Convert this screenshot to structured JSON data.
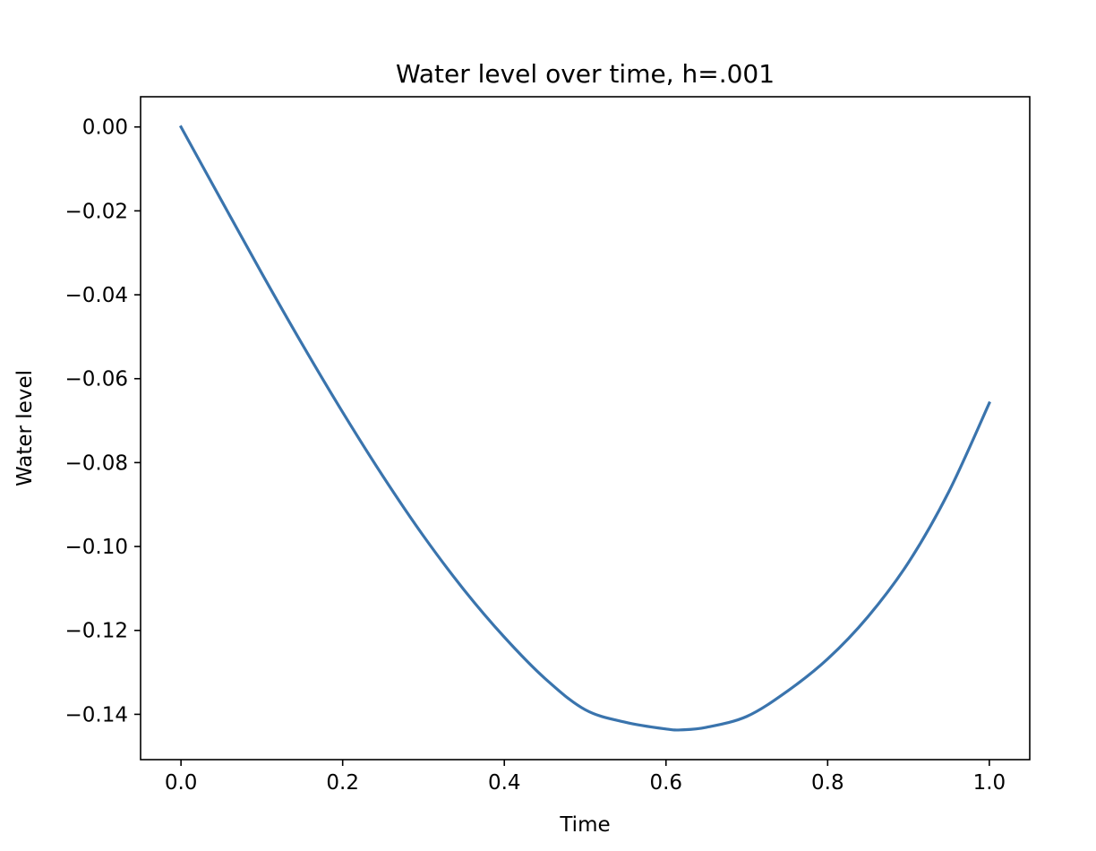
{
  "chart_data": {
    "type": "line",
    "title": "Water level over time, h=.001",
    "xlabel": "Time",
    "ylabel": "Water level",
    "xlim": [
      -0.05,
      1.05
    ],
    "ylim": [
      -0.1508,
      0.0072
    ],
    "grid": false,
    "xticks": [
      0.0,
      0.2,
      0.4,
      0.6,
      0.8,
      1.0
    ],
    "xtick_labels": [
      "0.0",
      "0.2",
      "0.4",
      "0.6",
      "0.8",
      "1.0"
    ],
    "yticks": [
      0.0,
      -0.02,
      -0.04,
      -0.06,
      -0.08,
      -0.1,
      -0.12,
      -0.14
    ],
    "ytick_labels": [
      "0.00",
      "−0.02",
      "−0.04",
      "−0.06",
      "−0.08",
      "−0.10",
      "−0.12",
      "−0.14"
    ],
    "series": [
      {
        "color": "#3a74ad",
        "x": [
          0.0,
          0.05,
          0.1,
          0.15,
          0.2,
          0.25,
          0.3,
          0.35,
          0.4,
          0.45,
          0.5,
          0.55,
          0.6,
          0.62,
          0.65,
          0.7,
          0.75,
          0.8,
          0.85,
          0.9,
          0.95,
          1.0
        ],
        "y": [
          0.0,
          -0.0175,
          -0.0349,
          -0.0518,
          -0.068,
          -0.0833,
          -0.0975,
          -0.1103,
          -0.1216,
          -0.1314,
          -0.1389,
          -0.1419,
          -0.1435,
          -0.1437,
          -0.1431,
          -0.1405,
          -0.1345,
          -0.1268,
          -0.1167,
          -0.1038,
          -0.0869,
          -0.0658
        ]
      }
    ]
  }
}
